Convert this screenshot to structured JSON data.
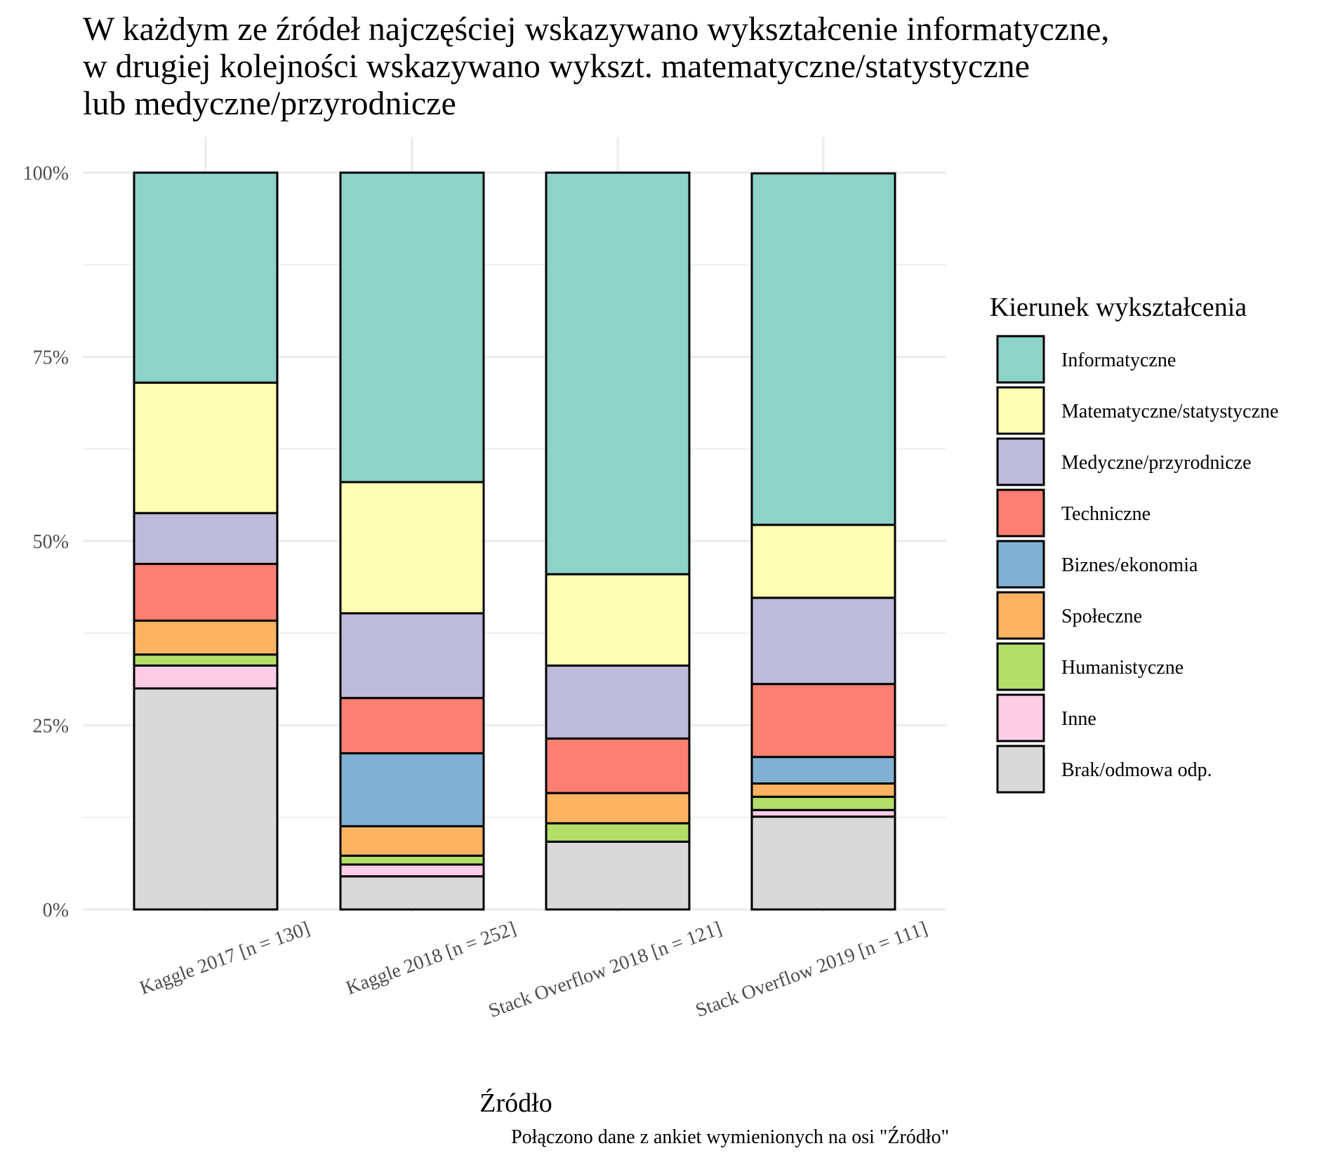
{
  "chart_data": {
    "type": "bar",
    "stacked": true,
    "title_lines": [
      "W każdym ze źródeł najczęściej wskazywano wykształcenie informatyczne,",
      "w drugiej kolejności wskazywano wykszt. matematyczne/statystyczne",
      "lub medyczne/przyrodnicze"
    ],
    "xlabel": "Źródło",
    "ylabel": "",
    "caption": "Połączono dane z ankiet wymienionych na osi \"Źródło\"",
    "ylim": [
      0,
      1
    ],
    "yticks": [
      0,
      0.25,
      0.5,
      0.75,
      1.0
    ],
    "ytick_labels": [
      "0%",
      "25%",
      "50%",
      "75%",
      "100%"
    ],
    "grid": true,
    "legend": {
      "title": "Kierunek wykształcenia",
      "position": "right"
    },
    "categories": [
      "Kaggle 2017 [n = 130]",
      "Kaggle 2018 [n = 252]",
      "Stack Overflow 2018 [n = 121]",
      "Stack Overflow 2019 [n = 111]"
    ],
    "series": [
      {
        "name": "Informatyczne",
        "color": "#8DD3C7",
        "values": [
          0.285,
          0.42,
          0.545,
          0.477
        ]
      },
      {
        "name": "Matematyczne/statystyczne",
        "color": "#FFFFB3",
        "values": [
          0.177,
          0.178,
          0.124,
          0.099
        ]
      },
      {
        "name": "Medyczne/przyrodnicze",
        "color": "#BEBADA",
        "values": [
          0.069,
          0.115,
          0.099,
          0.117
        ]
      },
      {
        "name": "Techniczne",
        "color": "#FB8072",
        "values": [
          0.077,
          0.075,
          0.074,
          0.099
        ]
      },
      {
        "name": "Biznes/ekonomia",
        "color": "#80B1D3",
        "values": [
          0.0,
          0.099,
          0.0,
          0.036
        ]
      },
      {
        "name": "Społeczne",
        "color": "#FDB462",
        "values": [
          0.046,
          0.04,
          0.041,
          0.018
        ]
      },
      {
        "name": "Humanistyczne",
        "color": "#B3DE69",
        "values": [
          0.015,
          0.012,
          0.025,
          0.018
        ]
      },
      {
        "name": "Inne",
        "color": "#FCCDE5",
        "values": [
          0.031,
          0.016,
          0.0,
          0.009
        ]
      },
      {
        "name": "Brak/odmowa odp.",
        "color": "#D9D9D9",
        "values": [
          0.3,
          0.045,
          0.092,
          0.126
        ]
      }
    ]
  }
}
